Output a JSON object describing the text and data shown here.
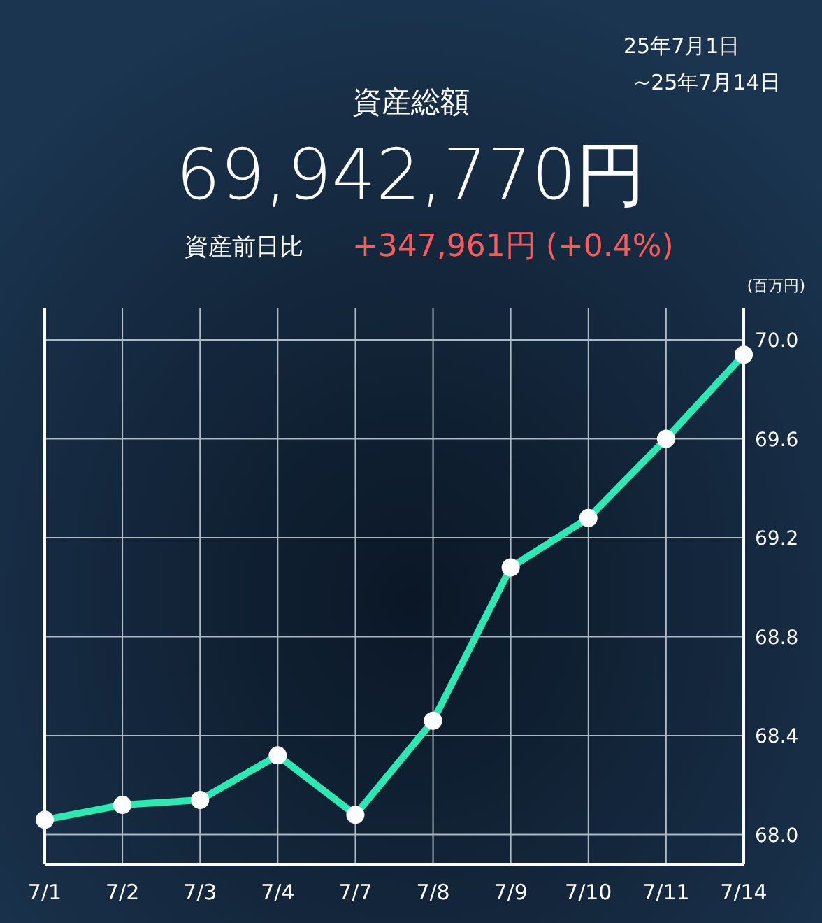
{
  "chart_data": {
    "type": "line",
    "title": "資産総額",
    "subtitle": "69,942,770円",
    "ylabel": "(百万円)",
    "annotations": [
      "資産前日比",
      "+347,961円 (+0.4%)",
      "25年7月1日",
      "~25年7月14日"
    ],
    "categories": [
      "7/1",
      "7/2",
      "7/3",
      "7/4",
      "7/7",
      "7/8",
      "7/9",
      "7/10",
      "7/11",
      "7/14"
    ],
    "series": [
      {
        "color": "#2ee8b4",
        "values": [
          68.06,
          68.12,
          68.14,
          68.32,
          68.08,
          68.46,
          69.08,
          69.28,
          69.6,
          69.94
        ]
      }
    ],
    "ylim": [
      67.88,
      70.13
    ],
    "yticks": [
      {
        "value": 68,
        "label": "68.0"
      },
      68.4,
      68.8,
      69.2,
      69.6,
      {
        "value": 70,
        "label": "70.0"
      }
    ],
    "grid": true,
    "marker": "circle",
    "line_style": "solid"
  }
}
